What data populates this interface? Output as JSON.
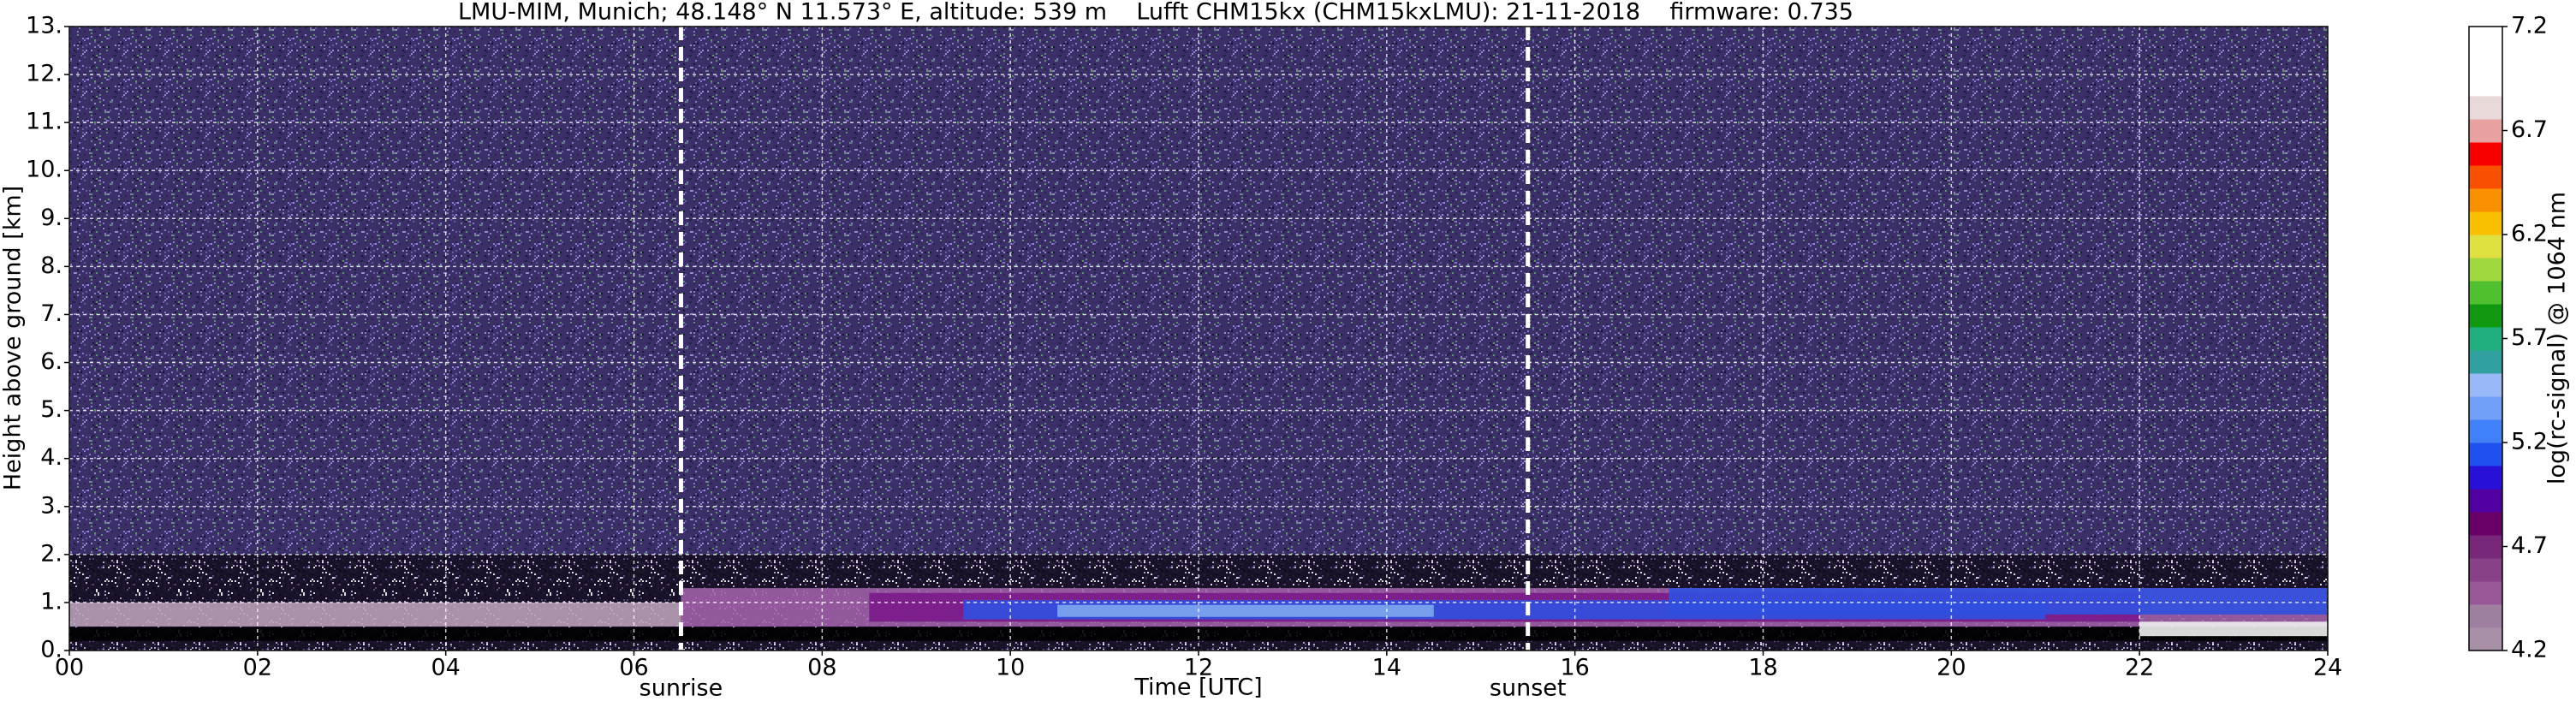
{
  "chart_data": {
    "type": "heatmap",
    "title": "LMU-MIM, Munich; 48.148° N 11.573° E, altitude: 539 m    Lufft CHM15kx (CHM15kxLMU): 21-11-2018    firmware: 0.735",
    "xlabel": "Time [UTC]",
    "ylabel": "Height above ground [km]",
    "xlim": [
      0,
      24
    ],
    "ylim": [
      0,
      13
    ],
    "xticks": [
      {
        "value": 0,
        "label": "00"
      },
      {
        "value": 2,
        "label": "02"
      },
      {
        "value": 4,
        "label": "04"
      },
      {
        "value": 6,
        "label": "06"
      },
      {
        "value": 8,
        "label": "08"
      },
      10,
      12,
      14,
      16,
      18,
      20,
      22,
      24
    ],
    "yticks": [
      {
        "value": 0,
        "label": "0."
      },
      {
        "value": 1,
        "label": "1."
      },
      {
        "value": 2,
        "label": "2."
      },
      {
        "value": 3,
        "label": "3."
      },
      {
        "value": 4,
        "label": "4."
      },
      {
        "value": 5,
        "label": "5."
      },
      {
        "value": 6,
        "label": "6."
      },
      {
        "value": 7,
        "label": "7."
      },
      {
        "value": 8,
        "label": "8."
      },
      {
        "value": 9,
        "label": "9."
      },
      {
        "value": 10,
        "label": "10."
      },
      {
        "value": 11,
        "label": "11."
      },
      {
        "value": 12,
        "label": "12."
      },
      {
        "value": 13,
        "label": "13."
      }
    ],
    "grid": true,
    "layers": [
      {
        "x": [
          0,
          6.5
        ],
        "y": [
          0.5,
          1.0
        ],
        "color": "#b8a0b8"
      },
      {
        "x": [
          6.5,
          24
        ],
        "y": [
          0.5,
          1.3
        ],
        "color": "#a060a8"
      },
      {
        "x": [
          8.5,
          22
        ],
        "y": [
          0.6,
          1.2
        ],
        "color": "#7a1a8a"
      },
      {
        "x": [
          9.5,
          21
        ],
        "y": [
          0.65,
          1.05
        ],
        "color": "#3050e0"
      },
      {
        "x": [
          10.5,
          14.5
        ],
        "y": [
          0.7,
          0.95
        ],
        "color": "#80a8f0"
      },
      {
        "x": [
          17,
          24
        ],
        "y": [
          0.75,
          1.3
        ],
        "color": "#3050e0"
      },
      {
        "x": [
          0,
          24
        ],
        "y": [
          0.2,
          0.48
        ],
        "color": "#000000"
      },
      {
        "x": [
          22,
          24
        ],
        "y": [
          0.3,
          0.6
        ],
        "color": "#f0f0f0"
      }
    ],
    "annotations": [
      {
        "x": 6.5,
        "text": "sunrise"
      },
      {
        "x": 15.5,
        "text": "sunset"
      }
    ],
    "colorbar": {
      "label": "log(rc-signal) @ 1064 nm",
      "clim": [
        4.2,
        7.2
      ],
      "ticks": [
        4.2,
        4.7,
        5.2,
        5.7,
        6.2,
        6.7,
        7.2
      ],
      "colors": [
        "#a890a8",
        "#a080a0",
        "#985898",
        "#884088",
        "#782878",
        "#680068",
        "#5000a0",
        "#2810d8",
        "#2050f0",
        "#4080f8",
        "#70a0f8",
        "#98b8f8",
        "#30a0a0",
        "#20b080",
        "#109810",
        "#50c030",
        "#a0d840",
        "#e0e040",
        "#f8c000",
        "#f89000",
        "#f85000",
        "#f80000",
        "#e8a0a0",
        "#e8d8d8",
        "#ffffff",
        "#ffffff",
        "#ffffff"
      ]
    }
  }
}
